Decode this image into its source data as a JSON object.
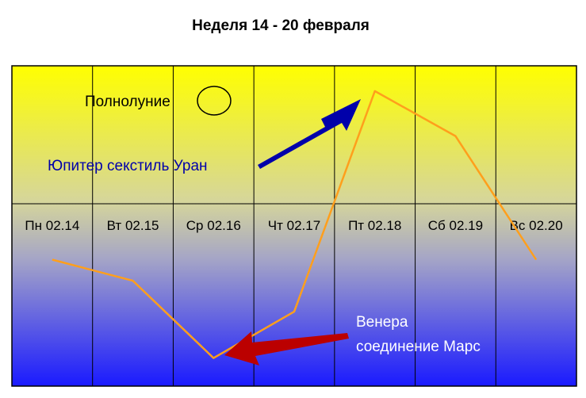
{
  "chart_data": {
    "type": "line",
    "title": "Неделя 14 - 20 февраля",
    "categories": [
      "Пн 02.14",
      "Вт 02.15",
      "Ср 02.16",
      "Чт 02.17",
      "Пт 02.18",
      "Сб 02.19",
      "Вс 02.20"
    ],
    "series": [
      {
        "values": [
          -0.35,
          -0.5,
          -1.05,
          -0.72,
          0.85,
          0.53,
          -0.35
        ]
      }
    ],
    "ylim": [
      -1.25,
      1.03
    ],
    "grid": true,
    "colors": {
      "line": "#ff9f1c",
      "background_top": "#ffff00",
      "background_bottom": "#1a1aff",
      "gridline": "#000000"
    }
  },
  "annotations": {
    "full_moon": "Полнолуние",
    "jupiter": "Юпитер секстиль Уран",
    "venus_line1": "Венера",
    "venus_line2": "соединение Марс"
  },
  "annotation_colors": {
    "full_moon": "#000000",
    "jupiter": "#0000aa",
    "venus": "#ffffff",
    "blue_arrow": "#0000aa",
    "red_arrow": "#bb0000"
  }
}
